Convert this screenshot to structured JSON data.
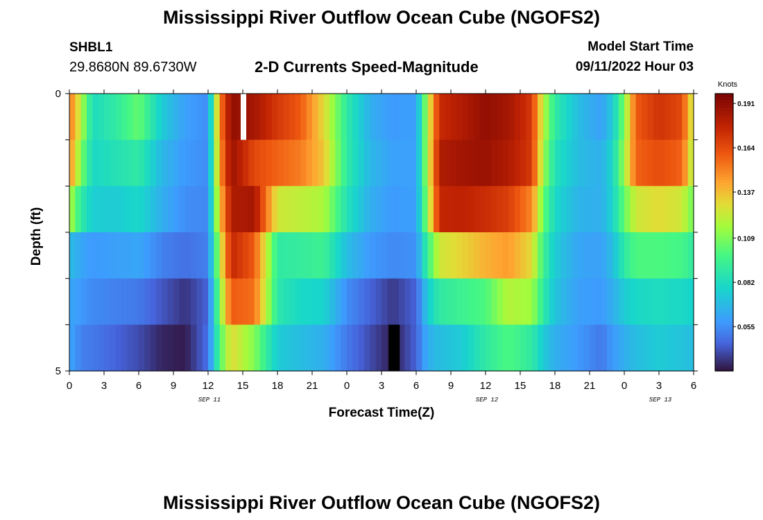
{
  "header": {
    "title": "Mississippi River Outflow Ocean Cube (NGOFS2)",
    "station": "SHBL1",
    "coordinates": "29.8680N  89.6730W",
    "subtitle": "2-D Currents Speed-Magnitude",
    "model_start_label": "Model Start Time",
    "model_start_value": "09/11/2022 Hour 03"
  },
  "footer": {
    "title": "Mississippi River Outflow Ocean Cube (NGOFS2)"
  },
  "chart_data": {
    "type": "heatmap",
    "title": "2-D Currents Speed-Magnitude",
    "xlabel": "Forecast Time(Z)",
    "ylabel": "Depth (ft)",
    "colorbar_title": "Knots",
    "colorbar_ticks": [
      "0.191",
      "0.164",
      "0.137",
      "0.109",
      "0.082",
      "0.055"
    ],
    "colorbar_range": [
      0.028,
      0.197
    ],
    "x_tick_labels": [
      "0",
      "3",
      "6",
      "9",
      "12",
      "15",
      "18",
      "21",
      "0",
      "3",
      "6",
      "9",
      "12",
      "15",
      "18",
      "21",
      "0",
      "3",
      "6"
    ],
    "date_labels": [
      {
        "text": "SEP 11",
        "tick_index": 4
      },
      {
        "text": "SEP 12",
        "tick_index": 12
      },
      {
        "text": "SEP 13",
        "tick_index": 17
      }
    ],
    "y_tick_labels": [
      "0",
      "5"
    ],
    "depth_range_ft": [
      0,
      5
    ],
    "time_range_hours": [
      0,
      54
    ],
    "rows": [
      [
        [
          0,
          0.155
        ],
        [
          1,
          0.12
        ],
        [
          2,
          0.082
        ],
        [
          4,
          0.09
        ],
        [
          6,
          0.105
        ],
        [
          8,
          0.075
        ],
        [
          10,
          0.06
        ],
        [
          12,
          0.055
        ],
        [
          13,
          0.15
        ],
        [
          14,
          0.19
        ],
        [
          16,
          0.185
        ],
        [
          18,
          0.17
        ],
        [
          20,
          0.16
        ],
        [
          22,
          0.13
        ],
        [
          24,
          0.09
        ],
        [
          26,
          0.065
        ],
        [
          28,
          0.058
        ],
        [
          30,
          0.06
        ],
        [
          31,
          0.12
        ],
        [
          32,
          0.175
        ],
        [
          34,
          0.182
        ],
        [
          36,
          0.19
        ],
        [
          38,
          0.185
        ],
        [
          40,
          0.17
        ],
        [
          41,
          0.12
        ],
        [
          42,
          0.09
        ],
        [
          44,
          0.07
        ],
        [
          46,
          0.06
        ],
        [
          47,
          0.075
        ],
        [
          48,
          0.11
        ],
        [
          49,
          0.16
        ],
        [
          51,
          0.172
        ],
        [
          53,
          0.165
        ],
        [
          54,
          0.12
        ]
      ],
      [
        [
          0,
          0.15
        ],
        [
          1,
          0.11
        ],
        [
          2,
          0.08
        ],
        [
          4,
          0.085
        ],
        [
          6,
          0.09
        ],
        [
          8,
          0.068
        ],
        [
          10,
          0.058
        ],
        [
          12,
          0.055
        ],
        [
          13,
          0.145
        ],
        [
          14,
          0.188
        ],
        [
          16,
          0.165
        ],
        [
          18,
          0.158
        ],
        [
          20,
          0.152
        ],
        [
          22,
          0.135
        ],
        [
          24,
          0.09
        ],
        [
          26,
          0.068
        ],
        [
          28,
          0.06
        ],
        [
          30,
          0.06
        ],
        [
          31,
          0.12
        ],
        [
          32,
          0.182
        ],
        [
          34,
          0.186
        ],
        [
          36,
          0.188
        ],
        [
          38,
          0.182
        ],
        [
          40,
          0.17
        ],
        [
          41,
          0.115
        ],
        [
          42,
          0.085
        ],
        [
          44,
          0.07
        ],
        [
          46,
          0.065
        ],
        [
          47,
          0.08
        ],
        [
          48,
          0.115
        ],
        [
          49,
          0.158
        ],
        [
          51,
          0.164
        ],
        [
          53,
          0.158
        ],
        [
          54,
          0.115
        ]
      ],
      [
        [
          0,
          0.12
        ],
        [
          1,
          0.09
        ],
        [
          2,
          0.076
        ],
        [
          4,
          0.075
        ],
        [
          6,
          0.08
        ],
        [
          8,
          0.065
        ],
        [
          10,
          0.055
        ],
        [
          12,
          0.054
        ],
        [
          13,
          0.135
        ],
        [
          14,
          0.182
        ],
        [
          16,
          0.185
        ],
        [
          18,
          0.125
        ],
        [
          20,
          0.122
        ],
        [
          22,
          0.118
        ],
        [
          24,
          0.085
        ],
        [
          26,
          0.065
        ],
        [
          28,
          0.058
        ],
        [
          30,
          0.06
        ],
        [
          31,
          0.115
        ],
        [
          32,
          0.176
        ],
        [
          34,
          0.178
        ],
        [
          36,
          0.174
        ],
        [
          38,
          0.168
        ],
        [
          40,
          0.15
        ],
        [
          41,
          0.105
        ],
        [
          42,
          0.08
        ],
        [
          44,
          0.067
        ],
        [
          46,
          0.065
        ],
        [
          47,
          0.078
        ],
        [
          48,
          0.105
        ],
        [
          49,
          0.125
        ],
        [
          51,
          0.13
        ],
        [
          53,
          0.125
        ],
        [
          54,
          0.105
        ]
      ],
      [
        [
          0,
          0.07
        ],
        [
          1,
          0.062
        ],
        [
          2,
          0.058
        ],
        [
          4,
          0.06
        ],
        [
          6,
          0.062
        ],
        [
          8,
          0.052
        ],
        [
          10,
          0.048
        ],
        [
          12,
          0.052
        ],
        [
          13,
          0.12
        ],
        [
          14,
          0.176
        ],
        [
          16,
          0.16
        ],
        [
          18,
          0.09
        ],
        [
          20,
          0.092
        ],
        [
          22,
          0.095
        ],
        [
          24,
          0.07
        ],
        [
          26,
          0.058
        ],
        [
          28,
          0.054
        ],
        [
          30,
          0.056
        ],
        [
          31,
          0.095
        ],
        [
          32,
          0.125
        ],
        [
          34,
          0.132
        ],
        [
          36,
          0.14
        ],
        [
          38,
          0.145
        ],
        [
          40,
          0.13
        ],
        [
          41,
          0.095
        ],
        [
          42,
          0.075
        ],
        [
          44,
          0.062
        ],
        [
          46,
          0.06
        ],
        [
          47,
          0.07
        ],
        [
          48,
          0.09
        ],
        [
          49,
          0.1
        ],
        [
          51,
          0.1
        ],
        [
          53,
          0.098
        ],
        [
          54,
          0.09
        ]
      ],
      [
        [
          0,
          0.062
        ],
        [
          1,
          0.058
        ],
        [
          2,
          0.054
        ],
        [
          4,
          0.052
        ],
        [
          6,
          0.05
        ],
        [
          8,
          0.042
        ],
        [
          10,
          0.035
        ],
        [
          12,
          0.045
        ],
        [
          13,
          0.11
        ],
        [
          14,
          0.16
        ],
        [
          16,
          0.155
        ],
        [
          18,
          0.088
        ],
        [
          20,
          0.08
        ],
        [
          22,
          0.078
        ],
        [
          24,
          0.055
        ],
        [
          26,
          0.045
        ],
        [
          28,
          0.036
        ],
        [
          30,
          0.045
        ],
        [
          31,
          0.075
        ],
        [
          32,
          0.09
        ],
        [
          34,
          0.095
        ],
        [
          36,
          0.1
        ],
        [
          38,
          0.12
        ],
        [
          40,
          0.115
        ],
        [
          41,
          0.09
        ],
        [
          42,
          0.072
        ],
        [
          44,
          0.06
        ],
        [
          46,
          0.058
        ],
        [
          47,
          0.065
        ],
        [
          48,
          0.075
        ],
        [
          49,
          0.08
        ],
        [
          51,
          0.082
        ],
        [
          53,
          0.08
        ],
        [
          54,
          0.078
        ]
      ],
      [
        [
          0,
          0.062
        ],
        [
          1,
          0.052
        ],
        [
          2,
          0.05
        ],
        [
          4,
          0.045
        ],
        [
          6,
          0.04
        ],
        [
          8,
          0.032
        ],
        [
          10,
          0.03
        ],
        [
          12,
          0.048
        ],
        [
          13,
          0.1
        ],
        [
          14,
          0.13
        ],
        [
          16,
          0.11
        ],
        [
          18,
          0.075
        ],
        [
          20,
          0.07
        ],
        [
          22,
          0.065
        ],
        [
          24,
          0.05
        ],
        [
          26,
          0.04
        ],
        [
          28,
          0.03
        ],
        [
          30,
          0.045
        ],
        [
          31,
          0.065
        ],
        [
          32,
          0.07
        ],
        [
          34,
          0.075
        ],
        [
          36,
          0.09
        ],
        [
          38,
          0.1
        ],
        [
          40,
          0.09
        ],
        [
          41,
          0.075
        ],
        [
          42,
          0.065
        ],
        [
          44,
          0.058
        ],
        [
          46,
          0.05
        ],
        [
          47,
          0.058
        ],
        [
          48,
          0.065
        ],
        [
          49,
          0.07
        ],
        [
          51,
          0.075
        ],
        [
          53,
          0.072
        ],
        [
          54,
          0.07
        ]
      ]
    ],
    "missing_blocks": [
      {
        "hour": 15,
        "row": 0,
        "fill": "#ffffff"
      },
      {
        "hour": 27.8,
        "row": 5,
        "fill": "#000000"
      }
    ]
  }
}
